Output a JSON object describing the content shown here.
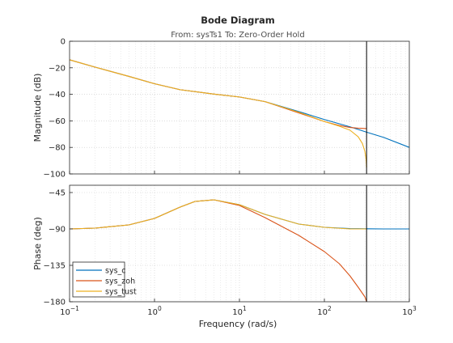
{
  "chart_data": {
    "type": "line",
    "title": "Bode Diagram",
    "subtitle": "From: sysTs1  To: Zero-Order Hold",
    "xlabel": "Frequency  (rad/s)",
    "xscale": "log",
    "xlim": [
      0.1,
      1000
    ],
    "x_ticks": [
      {
        "value": 0.1,
        "base": "10",
        "exp": "-1"
      },
      {
        "value": 1,
        "base": "10",
        "exp": "0"
      },
      {
        "value": 10,
        "base": "10",
        "exp": "1"
      },
      {
        "value": 100,
        "base": "10",
        "exp": "2"
      },
      {
        "value": 1000,
        "base": "10",
        "exp": "3"
      }
    ],
    "nyquist_marker_x": 314,
    "grid": true,
    "legend_placement": "bottom-left",
    "colors": {
      "sys_c": "#0072BD",
      "sys_zoh": "#D95319",
      "sys_tust": "#EDB120"
    },
    "panels": [
      {
        "id": "magnitude",
        "ylabel": "Magnitude (dB)",
        "ylim": [
          -100,
          0
        ],
        "y_ticks": [
          0,
          -20,
          -40,
          -60,
          -80,
          -100
        ],
        "series": [
          {
            "name": "sys_c",
            "x": [
              0.1,
              0.2,
              0.5,
              1,
              2,
              5,
              10,
              20,
              50,
              100,
              200,
              314,
              500,
              1000
            ],
            "y": [
              -14,
              -19.5,
              -26.5,
              -32,
              -36.5,
              -39.8,
              -42,
              -45.5,
              -53,
              -59,
              -64.5,
              -68.5,
              -72.5,
              -80
            ]
          },
          {
            "name": "sys_zoh",
            "x": [
              0.1,
              0.2,
              0.5,
              1,
              2,
              5,
              10,
              20,
              50,
              100,
              150,
              200,
              250,
              314
            ],
            "y": [
              -14,
              -19.5,
              -26.5,
              -32,
              -36.5,
              -39.8,
              -42,
              -45.5,
              -54,
              -60.5,
              -63.5,
              -65,
              -65.5,
              -65.8
            ]
          },
          {
            "name": "sys_tust",
            "x": [
              0.1,
              0.2,
              0.5,
              1,
              2,
              5,
              10,
              20,
              50,
              100,
              150,
              200,
              250,
              280,
              300,
              310,
              314
            ],
            "y": [
              -14,
              -19.5,
              -26.5,
              -32,
              -36.5,
              -39.8,
              -42,
              -45.5,
              -53.5,
              -60.5,
              -64,
              -67,
              -72,
              -77,
              -83,
              -89,
              -95
            ]
          }
        ]
      },
      {
        "id": "phase",
        "ylabel": "Phase (deg)",
        "ylim": [
          -180,
          -36
        ],
        "y_ticks": [
          -45,
          -90,
          -135,
          -180
        ],
        "series": [
          {
            "name": "sys_c",
            "x": [
              0.1,
              0.2,
              0.5,
              1,
              2,
              3,
              5,
              10,
              20,
              50,
              100,
              200,
              314,
              500,
              1000
            ],
            "y": [
              -90,
              -89,
              -85,
              -77,
              -63,
              -56,
              -54,
              -60,
              -72,
              -84,
              -88,
              -89.5,
              -89.8,
              -90,
              -90
            ]
          },
          {
            "name": "sys_zoh",
            "x": [
              0.1,
              0.2,
              0.5,
              1,
              2,
              3,
              5,
              10,
              20,
              50,
              100,
              150,
              200,
              250,
              300,
              314
            ],
            "y": [
              -90,
              -89,
              -85,
              -77,
              -63,
              -56,
              -54,
              -61,
              -76,
              -98,
              -118,
              -133,
              -148,
              -162,
              -174,
              -180
            ]
          },
          {
            "name": "sys_tust",
            "x": [
              0.1,
              0.2,
              0.5,
              1,
              2,
              3,
              5,
              10,
              20,
              50,
              100,
              200,
              314
            ],
            "y": [
              -90,
              -89,
              -85,
              -77,
              -63,
              -56,
              -54,
              -60,
              -72,
              -84,
              -88,
              -90,
              -90
            ]
          }
        ]
      }
    ],
    "legend": [
      "sys_c",
      "sys_zoh",
      "sys_tust"
    ]
  }
}
